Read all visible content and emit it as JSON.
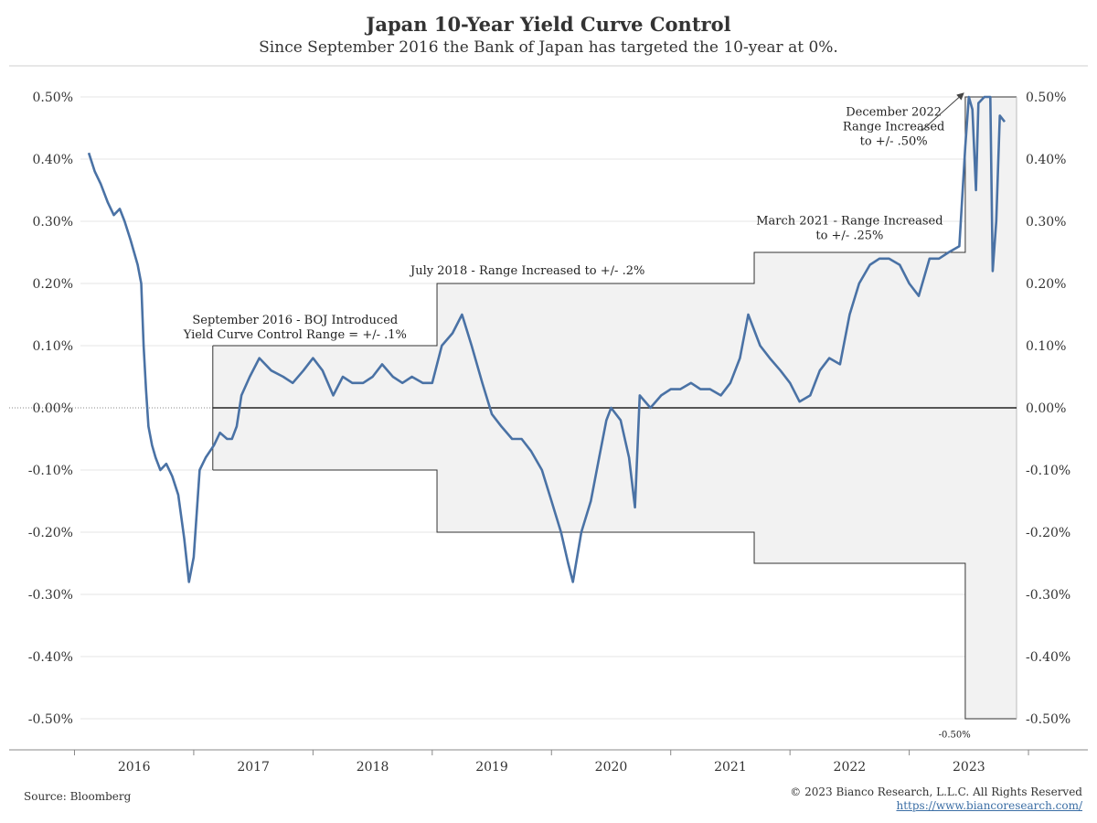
{
  "header": {
    "title": "Japan 10-Year Yield Curve Control",
    "subtitle": "Since September 2016 the Bank of Japan has targeted the 10-year at 0%."
  },
  "footer": {
    "source": "Source: Bloomberg",
    "copyright": "© 2023 Bianco Research, L.L.C. All Rights Reserved",
    "url": "https://www.biancoresearch.com/"
  },
  "colors": {
    "series": "#4a72a5",
    "band_fill": "#f2f2f2",
    "band_edge": "#333333",
    "zero_line": "#222222",
    "grid": "#e6e6e6"
  },
  "chart_data": {
    "type": "line",
    "title": "Japan 10-Year Yield Curve Control",
    "subtitle": "Since September 2016 the Bank of Japan has targeted the 10-year at 0%.",
    "xlabel": "",
    "ylabel": "",
    "xlim": [
      2015.55,
      2023.4
    ],
    "ylim": [
      -0.55,
      0.55
    ],
    "x_ticks": [
      2016,
      2017,
      2018,
      2019,
      2020,
      2021,
      2022,
      2023
    ],
    "x_tick_labels": [
      "2016",
      "2017",
      "2018",
      "2019",
      "2020",
      "2021",
      "2022",
      "2023"
    ],
    "y_ticks": [
      -0.5,
      -0.4,
      -0.3,
      -0.2,
      -0.1,
      0,
      0.1,
      0.2,
      0.3,
      0.4,
      0.5
    ],
    "y_tick_labels": [
      "-0.50%",
      "-0.40%",
      "-0.30%",
      "-0.20%",
      "-0.10%",
      "0.00%",
      "0.10%",
      "0.20%",
      "0.30%",
      "0.40%",
      "0.50%"
    ],
    "grid": true,
    "dual_y_axis": true,
    "series": [
      {
        "values": [
          [
            2015.62,
            0.41
          ],
          [
            2015.67,
            0.38
          ],
          [
            2015.72,
            0.36
          ],
          [
            2015.78,
            0.33
          ],
          [
            2015.83,
            0.31
          ],
          [
            2015.88,
            0.32
          ],
          [
            2015.92,
            0.3
          ],
          [
            2015.97,
            0.27
          ],
          [
            2016.0,
            0.25
          ],
          [
            2016.03,
            0.23
          ],
          [
            2016.06,
            0.2
          ],
          [
            2016.08,
            0.1
          ],
          [
            2016.1,
            0.03
          ],
          [
            2016.12,
            -0.03
          ],
          [
            2016.15,
            -0.06
          ],
          [
            2016.18,
            -0.08
          ],
          [
            2016.22,
            -0.1
          ],
          [
            2016.27,
            -0.09
          ],
          [
            2016.32,
            -0.11
          ],
          [
            2016.37,
            -0.14
          ],
          [
            2016.42,
            -0.21
          ],
          [
            2016.46,
            -0.28
          ],
          [
            2016.5,
            -0.24
          ],
          [
            2016.55,
            -0.1
          ],
          [
            2016.6,
            -0.08
          ],
          [
            2016.67,
            -0.06
          ],
          [
            2016.72,
            -0.04
          ],
          [
            2016.78,
            -0.05
          ],
          [
            2016.82,
            -0.05
          ],
          [
            2016.86,
            -0.03
          ],
          [
            2016.9,
            0.02
          ],
          [
            2016.97,
            0.05
          ],
          [
            2017.05,
            0.08
          ],
          [
            2017.15,
            0.06
          ],
          [
            2017.25,
            0.05
          ],
          [
            2017.33,
            0.04
          ],
          [
            2017.42,
            0.06
          ],
          [
            2017.5,
            0.08
          ],
          [
            2017.58,
            0.06
          ],
          [
            2017.67,
            0.02
          ],
          [
            2017.75,
            0.05
          ],
          [
            2017.83,
            0.04
          ],
          [
            2017.92,
            0.04
          ],
          [
            2018.0,
            0.05
          ],
          [
            2018.08,
            0.07
          ],
          [
            2018.17,
            0.05
          ],
          [
            2018.25,
            0.04
          ],
          [
            2018.33,
            0.05
          ],
          [
            2018.42,
            0.04
          ],
          [
            2018.5,
            0.04
          ],
          [
            2018.58,
            0.1
          ],
          [
            2018.67,
            0.12
          ],
          [
            2018.75,
            0.15
          ],
          [
            2018.83,
            0.1
          ],
          [
            2018.92,
            0.04
          ],
          [
            2019.0,
            -0.01
          ],
          [
            2019.08,
            -0.03
          ],
          [
            2019.17,
            -0.05
          ],
          [
            2019.25,
            -0.05
          ],
          [
            2019.33,
            -0.07
          ],
          [
            2019.42,
            -0.1
          ],
          [
            2019.5,
            -0.15
          ],
          [
            2019.58,
            -0.2
          ],
          [
            2019.64,
            -0.25
          ],
          [
            2019.68,
            -0.28
          ],
          [
            2019.75,
            -0.2
          ],
          [
            2019.83,
            -0.15
          ],
          [
            2019.9,
            -0.08
          ],
          [
            2019.96,
            -0.02
          ],
          [
            2020.0,
            0.0
          ],
          [
            2020.08,
            -0.02
          ],
          [
            2020.15,
            -0.08
          ],
          [
            2020.2,
            -0.16
          ],
          [
            2020.24,
            0.02
          ],
          [
            2020.33,
            0.0
          ],
          [
            2020.42,
            0.02
          ],
          [
            2020.5,
            0.03
          ],
          [
            2020.58,
            0.03
          ],
          [
            2020.67,
            0.04
          ],
          [
            2020.75,
            0.03
          ],
          [
            2020.83,
            0.03
          ],
          [
            2020.92,
            0.02
          ],
          [
            2021.0,
            0.04
          ],
          [
            2021.08,
            0.08
          ],
          [
            2021.15,
            0.15
          ],
          [
            2021.25,
            0.1
          ],
          [
            2021.33,
            0.08
          ],
          [
            2021.42,
            0.06
          ],
          [
            2021.5,
            0.04
          ],
          [
            2021.58,
            0.01
          ],
          [
            2021.67,
            0.02
          ],
          [
            2021.75,
            0.06
          ],
          [
            2021.83,
            0.08
          ],
          [
            2021.92,
            0.07
          ],
          [
            2022.0,
            0.15
          ],
          [
            2022.08,
            0.2
          ],
          [
            2022.17,
            0.23
          ],
          [
            2022.25,
            0.24
          ],
          [
            2022.33,
            0.24
          ],
          [
            2022.42,
            0.23
          ],
          [
            2022.5,
            0.2
          ],
          [
            2022.58,
            0.18
          ],
          [
            2022.67,
            0.24
          ],
          [
            2022.75,
            0.24
          ],
          [
            2022.83,
            0.25
          ],
          [
            2022.92,
            0.26
          ],
          [
            2022.97,
            0.42
          ],
          [
            2023.0,
            0.5
          ],
          [
            2023.03,
            0.48
          ],
          [
            2023.06,
            0.35
          ],
          [
            2023.08,
            0.49
          ],
          [
            2023.13,
            0.5
          ],
          [
            2023.18,
            0.5
          ],
          [
            2023.2,
            0.22
          ],
          [
            2023.23,
            0.3
          ],
          [
            2023.26,
            0.47
          ],
          [
            2023.3,
            0.46
          ]
        ]
      }
    ],
    "band": {
      "upper": [
        [
          2016.66,
          0.1
        ],
        [
          2018.54,
          0.1
        ],
        [
          2018.54,
          0.2
        ],
        [
          2021.2,
          0.2
        ],
        [
          2021.2,
          0.25
        ],
        [
          2022.97,
          0.25
        ],
        [
          2022.97,
          0.5
        ],
        [
          2023.4,
          0.5
        ]
      ],
      "lower": [
        [
          2016.66,
          -0.1
        ],
        [
          2018.54,
          -0.1
        ],
        [
          2018.54,
          -0.2
        ],
        [
          2021.2,
          -0.2
        ],
        [
          2021.2,
          -0.25
        ],
        [
          2022.97,
          -0.25
        ],
        [
          2022.97,
          -0.5
        ],
        [
          2023.4,
          -0.5
        ]
      ]
    },
    "annotations": [
      {
        "lines": [
          "September 2016 - BOJ Introduced",
          "Yield Curve Control Range = +/- .1%"
        ],
        "x": 2017.35,
        "y": 0.135
      },
      {
        "lines": [
          "July 2018 - Range Increased to +/- .2%"
        ],
        "x": 2019.3,
        "y": 0.215
      },
      {
        "lines": [
          "March 2021 - Range Increased",
          "to +/- .25%"
        ],
        "x": 2022.0,
        "y": 0.295
      },
      {
        "lines": [
          "December 2022",
          "Range Increased",
          "to +/- .50%"
        ],
        "x": 2022.37,
        "y": 0.47
      },
      {
        "lines": [
          "-0.50%"
        ],
        "x": 2022.88,
        "y": -0.53
      }
    ]
  }
}
